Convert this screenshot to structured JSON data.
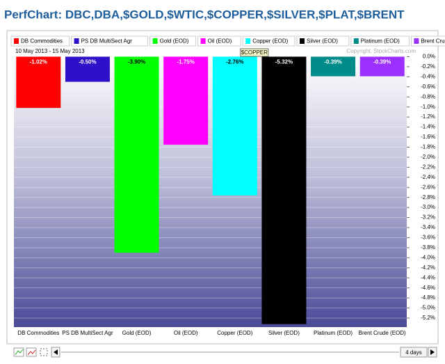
{
  "chart_data": {
    "type": "bar",
    "title": "PerfChart: DBC,DBA,$GOLD,$WTIC,$COPPER,$SILVER,$PLAT,$BRENT",
    "date_range": "10 May 2013 - 15 May 2013",
    "copyright": "Copyright, StockCharts.com",
    "tooltip": "$COPPER",
    "period": "4 days",
    "categories": [
      "DB Commodities",
      "PS DB MultiSect  Agr",
      "Gold (EOD)",
      "Oil (EOD)",
      "Copper (EOD)",
      "Silver (EOD)",
      "Platinum (EOD)",
      "Brent Crude (EOD)"
    ],
    "values": [
      -1.02,
      -0.5,
      -3.9,
      -1.75,
      -2.76,
      -5.32,
      -0.39,
      -0.39
    ],
    "value_labels": [
      "-1.02%",
      "-0.50%",
      "-3.90%",
      "-1.75%",
      "-2.76%",
      "-5.32%",
      "-0.39%",
      "-0.39%"
    ],
    "colors": [
      "#ff0000",
      "#2f10c8",
      "#00ff00",
      "#ff00ff",
      "#00ffff",
      "#000000",
      "#008b8b",
      "#9b30ff"
    ],
    "ylim": [
      -5.38,
      0.02
    ],
    "yticks": [
      {
        "value": 0,
        "label": "0.0%"
      },
      {
        "value": -0.2,
        "label": "-0.2%"
      },
      {
        "value": -0.4,
        "label": "-0.4%"
      },
      {
        "value": -0.6,
        "label": "-0.6%"
      },
      {
        "value": -0.8,
        "label": "-0.8%"
      },
      {
        "value": -1,
        "label": "-1.0%"
      },
      {
        "value": -1.2,
        "label": "-1.2%"
      },
      {
        "value": -1.4,
        "label": "-1.4%"
      },
      {
        "value": -1.6,
        "label": "-1.6%"
      },
      {
        "value": -1.8,
        "label": "-1.8%"
      },
      {
        "value": -2,
        "label": "-2.0%"
      },
      {
        "value": -2.2,
        "label": "-2.2%"
      },
      {
        "value": -2.4,
        "label": "-2.4%"
      },
      {
        "value": -2.6,
        "label": "-2.6%"
      },
      {
        "value": -2.8,
        "label": "-2.8%"
      },
      {
        "value": -3,
        "label": "-3.0%"
      },
      {
        "value": -3.2,
        "label": "-3.2%"
      },
      {
        "value": -3.4,
        "label": "-3.4%"
      },
      {
        "value": -3.6,
        "label": "-3.6%"
      },
      {
        "value": -3.8,
        "label": "-3.8%"
      },
      {
        "value": -4,
        "label": "-4.0%"
      },
      {
        "value": -4.2,
        "label": "-4.2%"
      },
      {
        "value": -4.4,
        "label": "-4.4%"
      },
      {
        "value": -4.6,
        "label": "-4.6%"
      },
      {
        "value": -4.8,
        "label": "-4.8%"
      },
      {
        "value": -5,
        "label": "-5.0%"
      },
      {
        "value": -5.2,
        "label": "-5.2%"
      }
    ],
    "grid": true
  }
}
